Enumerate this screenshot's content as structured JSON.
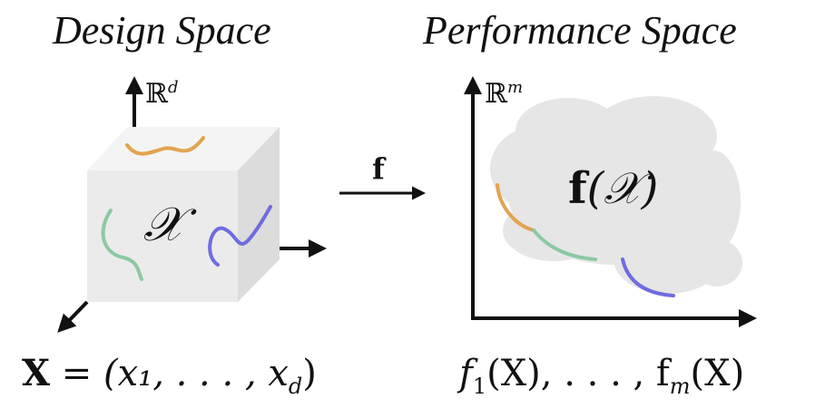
{
  "design": {
    "title": "Design Space",
    "space_label": "ℝ",
    "space_dim": "d",
    "set_symbol": "𝒳",
    "input_lhs": "X",
    "input_rhs": "= (x₁, . . . , x",
    "input_sub": "d",
    "input_close": ")"
  },
  "mapping": {
    "label": "f"
  },
  "performance": {
    "title": "Performance Space",
    "space_label": "ℝ",
    "space_dim": "m",
    "image_label_f": "f",
    "image_label_arg": "(𝒳)",
    "outputs_prefix": "f",
    "outputs_sub1": "1",
    "outputs_mid": "(X), . . . , f",
    "outputs_subm": "m",
    "outputs_end": "(X)"
  },
  "colors": {
    "orange": "#E3A44F",
    "green": "#8CC9A3",
    "purple": "#6F6CE0",
    "cube_front": "#EBEBEB",
    "cube_top": "#F4F4F4",
    "cube_side": "#DCDCDC",
    "cloud": "#E6E6E6"
  }
}
